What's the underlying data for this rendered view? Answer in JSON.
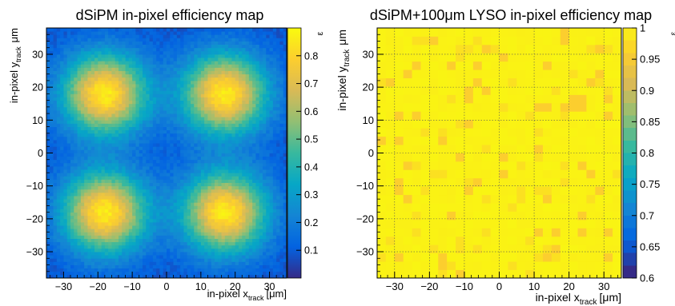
{
  "chart_data": [
    {
      "type": "heatmap",
      "title": "dSiPM in-pixel efficiency map",
      "xlabel": {
        "main": "in-pixel x",
        "sub": "track",
        "unit": "[μm]"
      },
      "ylabel": {
        "main": "in-pixel y",
        "sub": "track",
        "unit": "μm"
      },
      "zlabel": "ε",
      "xlim": [
        -35,
        35
      ],
      "ylim": [
        -38,
        38
      ],
      "zlim": [
        0,
        0.9
      ],
      "xticks": [
        -30,
        -20,
        -10,
        0,
        10,
        20,
        30
      ],
      "yticks": [
        -30,
        -20,
        -10,
        0,
        10,
        20,
        30
      ],
      "zticks": [
        0.1,
        0.2,
        0.3,
        0.4,
        0.5,
        0.6,
        0.7,
        0.8
      ],
      "grid": false,
      "colormap": "kBird",
      "bins": {
        "nx": 70,
        "ny": 76
      },
      "model": {
        "description": "four efficiency peaks on a low background",
        "background": 0.08,
        "peak_amplitude": 0.78,
        "peak_width": 8.5,
        "peaks": [
          [
            -18,
            18
          ],
          [
            17,
            18
          ],
          [
            -18,
            -18
          ],
          [
            17,
            -18
          ]
        ],
        "noise": 0.035
      }
    },
    {
      "type": "heatmap",
      "title": "dSiPM+100μm LYSO in-pixel efficiency map",
      "xlabel": {
        "main": "in-pixel x",
        "sub": "track",
        "unit": "[μm]"
      },
      "ylabel": {
        "main": "in-pixel y",
        "sub": "track",
        "unit": "μm"
      },
      "zlabel": "ε",
      "xlim": [
        -35,
        35
      ],
      "ylim": [
        -38,
        38
      ],
      "zlim": [
        0.6,
        1.0
      ],
      "xticks": [
        -30,
        -20,
        -10,
        0,
        10,
        20,
        30
      ],
      "yticks": [
        -30,
        -20,
        -10,
        0,
        10,
        20,
        30
      ],
      "zticks": [
        0.6,
        0.65,
        0.7,
        0.75,
        0.8,
        0.85,
        0.9,
        0.95,
        1
      ],
      "grid": true,
      "colormap": "kBird",
      "bins": {
        "nx": 28,
        "ny": 30
      },
      "model": {
        "description": "nearly uniform efficiency close to 1",
        "base": 0.99,
        "dip_probability": 0.13,
        "dip_values": [
          0.95,
          0.97
        ],
        "noise": 0.006
      }
    }
  ],
  "colors": {
    "palette": [
      "#352a87",
      "#0363e1",
      "#1485d4",
      "#06a7c6",
      "#38b99e",
      "#92bf73",
      "#d9ba56",
      "#fcce2e",
      "#f9fb0e"
    ]
  }
}
